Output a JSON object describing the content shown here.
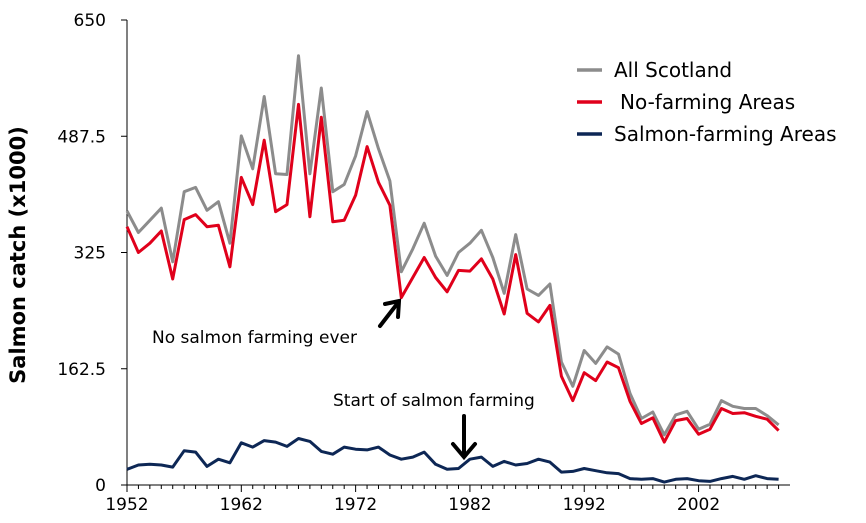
{
  "chart_data": {
    "type": "line",
    "title": "",
    "xlabel": "",
    "ylabel": "Salmon catch (x1000)",
    "xlim": [
      1952,
      2010
    ],
    "ylim": [
      0,
      650
    ],
    "x_ticks": [
      1952,
      1962,
      1972,
      1982,
      1992,
      2002
    ],
    "y_ticks": [
      0,
      162.5,
      325,
      487.5,
      650
    ],
    "y_tick_labels": [
      "0",
      "162.5",
      "325",
      "487.5",
      "650"
    ],
    "grid": false,
    "legend_position": "top-right",
    "x": [
      1952,
      1953,
      1954,
      1955,
      1956,
      1957,
      1958,
      1959,
      1960,
      1961,
      1962,
      1963,
      1964,
      1965,
      1966,
      1967,
      1968,
      1969,
      1970,
      1971,
      1972,
      1973,
      1974,
      1975,
      1976,
      1977,
      1978,
      1979,
      1980,
      1981,
      1982,
      1983,
      1984,
      1985,
      1986,
      1987,
      1988,
      1989,
      1990,
      1991,
      1992,
      1993,
      1994,
      1995,
      1996,
      1997,
      1998,
      1999,
      2000,
      2001,
      2002,
      2003,
      2004,
      2005,
      2006,
      2007,
      2008,
      2009
    ],
    "series": [
      {
        "name": "All Scotland",
        "color": "#8c8c8c",
        "values": [
          383,
          353,
          370,
          387,
          312,
          410,
          416,
          384,
          396,
          338,
          488,
          442,
          543,
          435,
          434,
          600,
          435,
          555,
          410,
          420,
          460,
          522,
          470,
          425,
          298,
          330,
          366,
          320,
          293,
          325,
          338,
          356,
          318,
          268,
          350,
          274,
          265,
          281,
          172,
          138,
          188,
          170,
          193,
          183,
          128,
          93,
          102,
          70,
          98,
          103,
          78,
          85,
          118,
          110,
          107,
          107,
          97,
          84
        ],
        "style": "line"
      },
      {
        "name": "No-farming Areas",
        "color": "#e0001b",
        "values": [
          361,
          325,
          338,
          355,
          288,
          371,
          378,
          361,
          363,
          305,
          430,
          392,
          482,
          382,
          392,
          532,
          375,
          514,
          368,
          370,
          405,
          473,
          423,
          391,
          262,
          290,
          318,
          290,
          270,
          300,
          299,
          316,
          288,
          239,
          322,
          240,
          228,
          251,
          152,
          118,
          157,
          146,
          172,
          164,
          117,
          86,
          94,
          60,
          90,
          93,
          71,
          78,
          107,
          100,
          101,
          96,
          92,
          76
        ]
      },
      {
        "name": "Salmon-farming Areas",
        "color": "#0d2755",
        "values": [
          22,
          28,
          29,
          28,
          25,
          48,
          46,
          26,
          36,
          31,
          59,
          53,
          62,
          60,
          54,
          65,
          61,
          47,
          43,
          53,
          50,
          49,
          53,
          42,
          36,
          39,
          46,
          29,
          22,
          23,
          36,
          39,
          26,
          33,
          28,
          30,
          36,
          32,
          18,
          19,
          23,
          20,
          17,
          16,
          9,
          8,
          9,
          4,
          8,
          9,
          6,
          5,
          9,
          12,
          8,
          13,
          9,
          8
        ]
      }
    ],
    "annotations": [
      {
        "text": "No salmon farming ever",
        "x": 1976,
        "y": 260
      },
      {
        "text": "Start of salmon farming",
        "x": 1981,
        "y": 23
      }
    ]
  }
}
